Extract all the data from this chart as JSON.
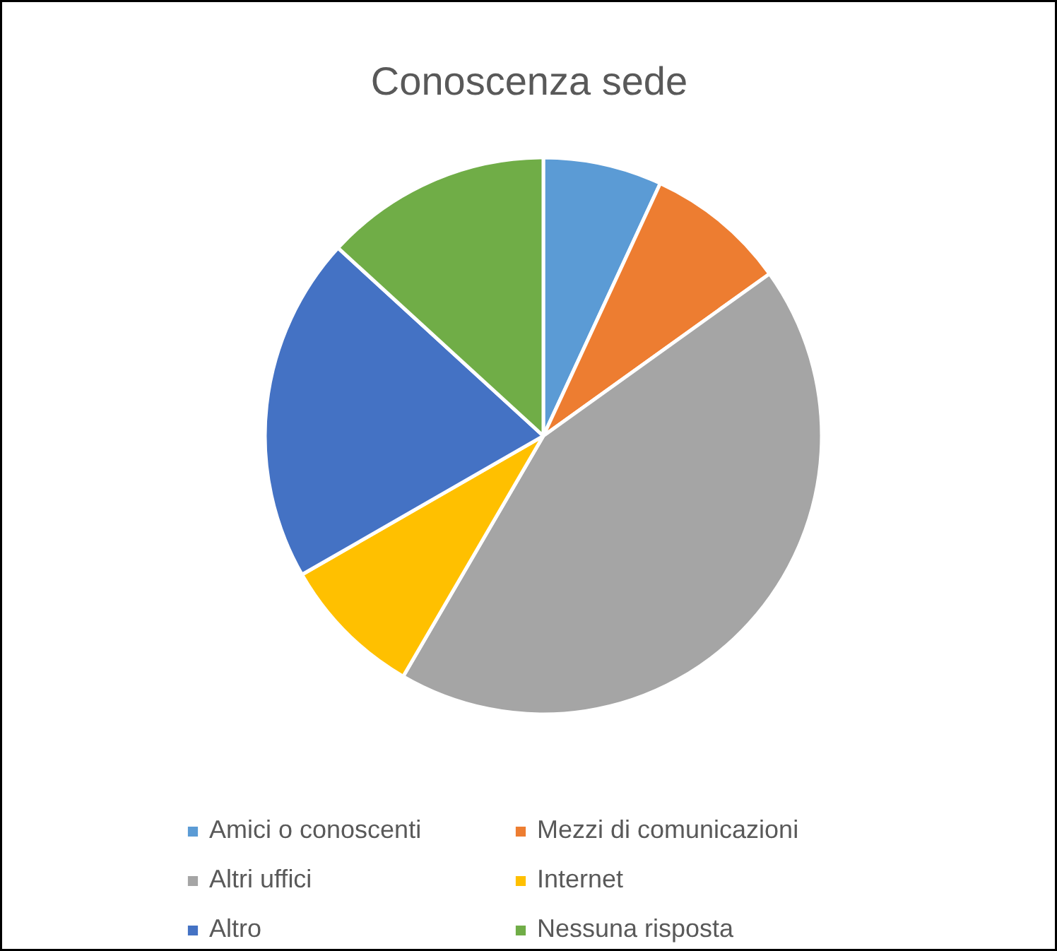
{
  "chart_data": {
    "type": "pie",
    "title": "Conoscenza sede",
    "categories": [
      "Amici o conoscenti",
      "Mezzi di comunicazioni",
      "Altri uffici",
      "Internet",
      "Altro",
      "Nessuna risposta"
    ],
    "values": [
      6.9,
      8.2,
      43.3,
      8.3,
      20.1,
      13.2
    ],
    "colors": [
      "#5b9bd5",
      "#ed7d31",
      "#a5a5a5",
      "#ffc000",
      "#4472c4",
      "#70ad47"
    ],
    "legend": "bottom"
  }
}
